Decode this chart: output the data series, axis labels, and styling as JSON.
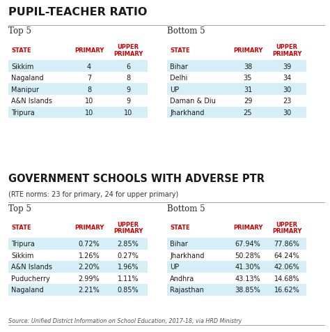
{
  "title1": "PUPIL-TEACHER RATIO",
  "title2": "GOVERNMENT SCHOOLS WITH ADVERSE PTR",
  "subtitle2": "(RTE norms: 23 for primary, 24 for upper primary)",
  "source": "Source: Unified District Information on School Education, 2017-18, via HRD Ministry",
  "ptr_top5_label": "Top 5",
  "ptr_top5_headers": [
    "STATE",
    "PRIMARY",
    "UPPER\nPRIMARY"
  ],
  "ptr_top5_rows": [
    [
      "Sikkim",
      "4",
      "6"
    ],
    [
      "Nagaland",
      "7",
      "8"
    ],
    [
      "Manipur",
      "8",
      "9"
    ],
    [
      "A&N Islands",
      "10",
      "9"
    ],
    [
      "Tripura",
      "10",
      "10"
    ]
  ],
  "ptr_bottom5_label": "Bottom 5",
  "ptr_bottom5_headers": [
    "STATE",
    "PRIMARY",
    "UPPER\nPRIMARY"
  ],
  "ptr_bottom5_rows": [
    [
      "Bihar",
      "38",
      "39"
    ],
    [
      "Delhi",
      "35",
      "34"
    ],
    [
      "UP",
      "31",
      "30"
    ],
    [
      "Daman & Diu",
      "29",
      "23"
    ],
    [
      "Jharkhand",
      "25",
      "30"
    ]
  ],
  "adv_top5_label": "Top 5",
  "adv_top5_headers": [
    "STATE",
    "PRIMARY",
    "UPPER\nPRIMARY"
  ],
  "adv_top5_rows": [
    [
      "Tripura",
      "0.72%",
      "2.85%"
    ],
    [
      "Sikkim",
      "1.26%",
      "0.27%"
    ],
    [
      "A&N Islands",
      "2.20%",
      "1.96%"
    ],
    [
      "Puducherry",
      "2.99%",
      "1.11%"
    ],
    [
      "Nagaland",
      "2.21%",
      "0.85%"
    ]
  ],
  "adv_bottom5_label": "Bottom 5",
  "adv_bottom5_headers": [
    "STATE",
    "PRIMARY",
    "UPPER\nPRIMARY"
  ],
  "adv_bottom5_rows": [
    [
      "Bihar",
      "67.94%",
      "77.86%"
    ],
    [
      "Jharkhand",
      "50.28%",
      "64.24%"
    ],
    [
      "UP",
      "41.30%",
      "42.06%"
    ],
    [
      "Andhra",
      "43.13%",
      "14.68%"
    ],
    [
      "Rajasthan",
      "38.85%",
      "16.62%"
    ]
  ],
  "bg_color": "#ffffff",
  "header_color": "#cc0000",
  "row_alt_color": "#d6eef5",
  "row_normal_color": "#ffffff",
  "text_color": "#1a1a1a",
  "title_color": "#1a1a1a",
  "divider_color": "#999999"
}
